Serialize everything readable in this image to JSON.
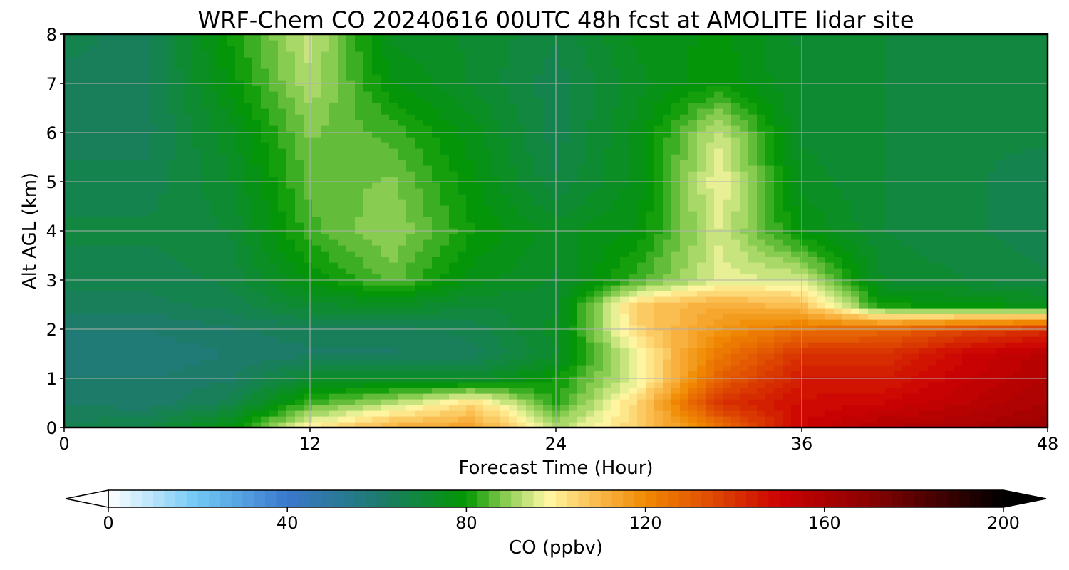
{
  "chart_data": {
    "type": "heatmap",
    "title": "WRF-Chem CO  20240616 00UTC 48h fcst at AMOLITE lidar site",
    "xlabel": "Forecast Time (Hour)",
    "ylabel": "Alt AGL (km)",
    "xlim": [
      0,
      48
    ],
    "ylim": [
      0,
      8
    ],
    "x_ticks": [
      0,
      12,
      24,
      36,
      48
    ],
    "y_ticks": [
      0,
      1,
      2,
      3,
      4,
      5,
      6,
      7,
      8
    ],
    "grid": true,
    "x": [
      0,
      4,
      8,
      12,
      16,
      20,
      24,
      28,
      32,
      36,
      40,
      44,
      48
    ],
    "y": [
      0,
      0.5,
      1,
      1.5,
      2,
      2.5,
      3,
      4,
      5,
      6,
      7,
      8
    ],
    "z": [
      [
        66,
        68,
        78,
        100,
        112,
        115,
        92,
        105,
        125,
        150,
        158,
        160,
        165
      ],
      [
        62,
        61,
        66,
        84,
        92,
        104,
        82,
        104,
        140,
        148,
        150,
        155,
        160
      ],
      [
        60,
        60,
        62,
        72,
        74,
        72,
        80,
        96,
        130,
        145,
        145,
        152,
        158
      ],
      [
        58,
        58,
        60,
        62,
        62,
        64,
        72,
        98,
        124,
        140,
        140,
        150,
        156
      ],
      [
        60,
        60,
        62,
        64,
        64,
        66,
        74,
        104,
        118,
        126,
        128,
        135,
        140
      ],
      [
        64,
        64,
        66,
        72,
        74,
        70,
        72,
        106,
        112,
        108,
        80,
        78,
        75
      ],
      [
        66,
        66,
        68,
        78,
        86,
        76,
        72,
        84,
        96,
        95,
        72,
        70,
        68
      ],
      [
        68,
        68,
        70,
        84,
        90,
        80,
        74,
        78,
        95,
        78,
        70,
        68,
        66
      ],
      [
        66,
        66,
        72,
        86,
        88,
        78,
        68,
        76,
        98,
        74,
        70,
        68,
        66
      ],
      [
        64,
        64,
        74,
        88,
        84,
        76,
        66,
        76,
        94,
        72,
        70,
        68,
        68
      ],
      [
        64,
        64,
        78,
        92,
        78,
        72,
        66,
        74,
        80,
        72,
        70,
        68,
        68
      ],
      [
        66,
        64,
        80,
        94,
        74,
        72,
        68,
        76,
        78,
        72,
        70,
        70,
        70
      ]
    ],
    "colorbar": {
      "label": "CO  (ppbv)",
      "min": 0,
      "max": 200,
      "step": 2.5,
      "extend": "both",
      "ticks": [
        0,
        40,
        80,
        120,
        160,
        200
      ],
      "colors": [
        [
          0,
          "#ffffff"
        ],
        [
          20,
          "#6fc8f5"
        ],
        [
          40,
          "#3a78cc"
        ],
        [
          60,
          "#1e7a70"
        ],
        [
          80,
          "#029702"
        ],
        [
          88,
          "#7ec84a"
        ],
        [
          98,
          "#fff8a5"
        ],
        [
          108,
          "#fbc055"
        ],
        [
          120,
          "#f08a02"
        ],
        [
          135,
          "#de4a02"
        ],
        [
          150,
          "#cc0202"
        ],
        [
          170,
          "#8a0202"
        ],
        [
          200,
          "#000000"
        ]
      ]
    }
  }
}
